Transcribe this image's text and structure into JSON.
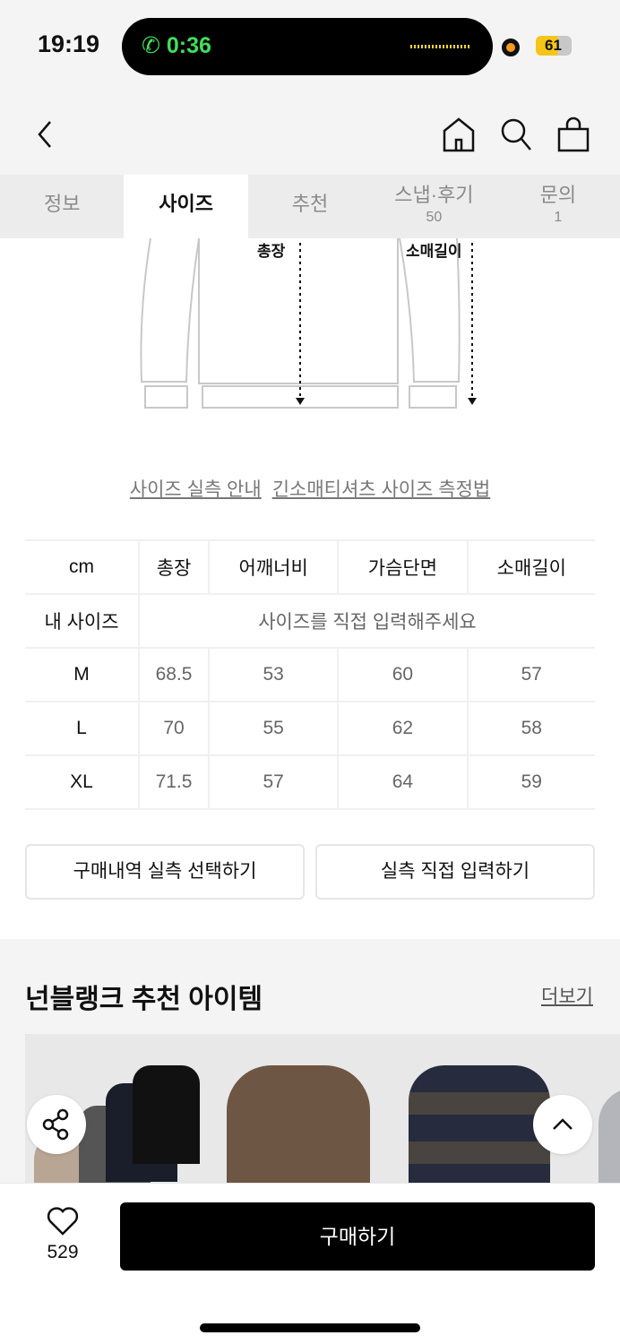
{
  "status_bar": {
    "time": "19:19",
    "call_timer": "0:36",
    "battery": "61"
  },
  "tabs": [
    {
      "label": "정보"
    },
    {
      "label": "사이즈",
      "active": true
    },
    {
      "label": "추천"
    },
    {
      "label": "스냅·후기",
      "count": "50"
    },
    {
      "label": "문의",
      "count": "1"
    }
  ],
  "diagram": {
    "length_label": "총장",
    "sleeve_label": "소매길이"
  },
  "links": {
    "guide": "사이즈 실측 안내",
    "method": "긴소매티셔츠 사이즈 측정법"
  },
  "size_table": {
    "headers": [
      "cm",
      "총장",
      "어깨너비",
      "가슴단면",
      "소매길이"
    ],
    "my_size_label": "내 사이즈",
    "my_size_placeholder": "사이즈를 직접 입력해주세요",
    "rows": [
      {
        "size": "M",
        "values": [
          "68.5",
          "53",
          "60",
          "57"
        ]
      },
      {
        "size": "L",
        "values": [
          "70",
          "55",
          "62",
          "58"
        ]
      },
      {
        "size": "XL",
        "values": [
          "71.5",
          "57",
          "64",
          "59"
        ]
      }
    ]
  },
  "buttons": {
    "history": "구매내역 실측 선택하기",
    "manual": "실측 직접 입력하기",
    "buy": "구매하기"
  },
  "recommend": {
    "title": "넌블랭크 추천 아이템",
    "more": "더보기"
  },
  "likes": "529",
  "colors": {
    "accent": "#000000",
    "call_green": "#3ee05a",
    "battery": "#f5c518"
  }
}
